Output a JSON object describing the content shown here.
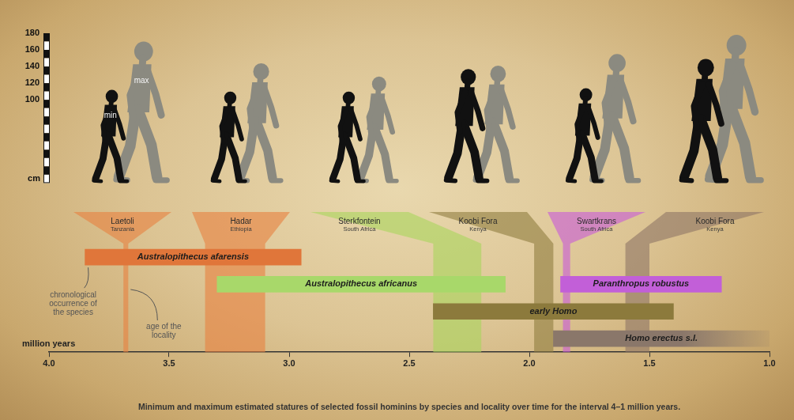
{
  "chart_data": [
    {
      "type": "bar",
      "categories": [
        "Laetoli",
        "Hadar",
        "Sterkfontein",
        "Koobi Fora",
        "Swartkrans",
        "Koobi Fora"
      ],
      "countries": [
        "Tanzania",
        "Ethiopia",
        "South Africa",
        "Kenya",
        "South Africa",
        "Kenya"
      ],
      "ages": [
        [
          3.69,
          3.67
        ],
        [
          3.35,
          3.1
        ],
        [
          2.4,
          2.2
        ],
        [
          1.98,
          1.9
        ],
        [
          1.86,
          1.83
        ],
        [
          1.6,
          1.5
        ]
      ],
      "colors": [
        "#e8813f",
        "#e8813f",
        "#a9d65c",
        "#8f7d3f",
        "#c85ad8",
        "#8d7565"
      ],
      "series": [
        {
          "name": "min",
          "color": "#111111",
          "values": [
            112,
            110,
            110,
            137,
            114,
            149
          ]
        },
        {
          "name": "max",
          "color": "#8b8a80",
          "values": [
            170,
            144,
            128,
            141,
            155,
            178
          ]
        }
      ],
      "ylabel": "cm",
      "ylim": [
        0,
        180
      ],
      "yticks": [
        100,
        120,
        140,
        160,
        180
      ],
      "grid": false,
      "tick_labels": "y"
    },
    {
      "type": "bar",
      "orientation": "horizontal",
      "title": "Minimum and maximum estimated statures of selected fossil hominins by species and locality over time for the interval 4–1 million years.",
      "xlabel": "million years",
      "xlim": [
        4.0,
        1.0
      ],
      "xticks": [
        {
          "value": 4,
          "label": "4.0"
        },
        3.5,
        {
          "value": 3,
          "label": "3.0"
        },
        2.5,
        {
          "value": 2,
          "label": "2.0"
        },
        1.5,
        {
          "value": 1,
          "label": "1.0"
        }
      ],
      "series": [
        {
          "name": "Australopithecus afarensis",
          "color": "#e0763a",
          "range": [
            3.85,
            2.95
          ]
        },
        {
          "name": "Australopithecus africanus",
          "color": "#a8d86a",
          "range": [
            3.3,
            2.1
          ]
        },
        {
          "name": "early Homo",
          "color": "#8c7a3c",
          "range": [
            2.4,
            1.4
          ]
        },
        {
          "name": "Paranthropus robustus",
          "color": "#c25fd8",
          "range": [
            1.87,
            1.2
          ]
        },
        {
          "name": "Homo erectus s.l.",
          "color": "#8a776a",
          "range": [
            1.9,
            1.0
          ]
        }
      ],
      "annotations": [
        "chronological occurrence of the species",
        "age of the locality"
      ],
      "grid": false,
      "tick_labels": "x"
    }
  ]
}
